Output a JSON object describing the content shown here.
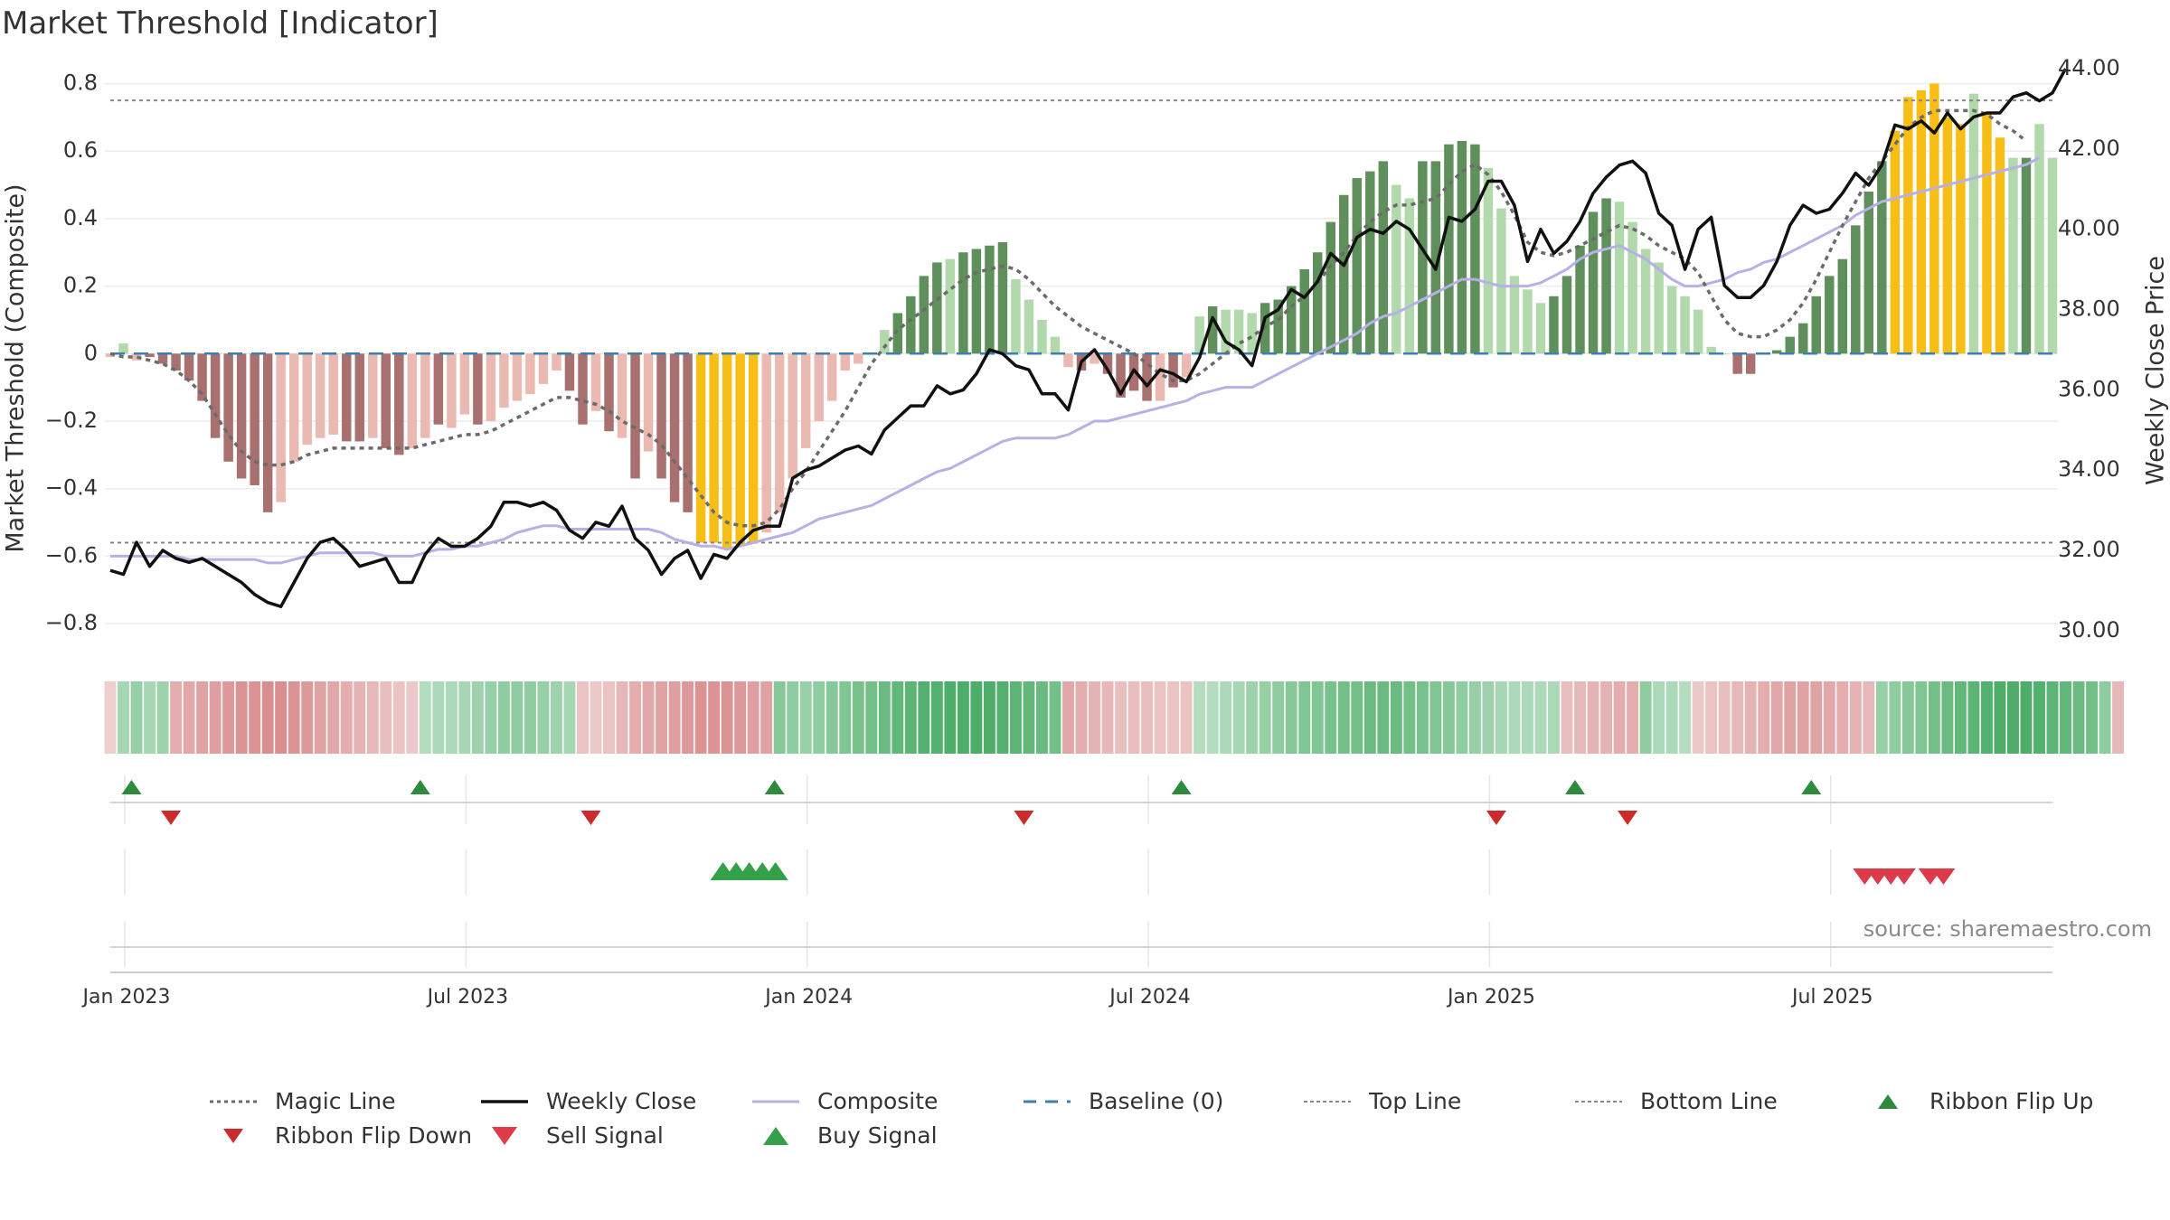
{
  "title": "Market Threshold [Indicator]",
  "source": "source: sharemaestro.com",
  "colors": {
    "magic": "#6b6b6b",
    "close": "#111111",
    "composite": "#b7b0e6",
    "baseline": "#3d7fb0",
    "threshold": "#888888",
    "flip_up": "#2e8b3e",
    "flip_down": "#cc2b2b",
    "sell": "#dd3b4a",
    "buy": "#34a04a",
    "bar_dark_red": "#a8706e",
    "bar_light_red": "#eab9b2",
    "bar_dark_green": "#5f8f5a",
    "bar_light_green": "#b1d9ac",
    "bar_yellow": "#f7be15"
  },
  "chart_data": {
    "type": "bar",
    "ylabel_left": "Market Threshold (Composite)",
    "ylabel_right": "Weekly Close Price",
    "ylim_left": [
      -0.88,
      0.82
    ],
    "ylim_right": [
      29.5,
      43.8
    ],
    "left_ticks": [
      0.8,
      0.6,
      0.4,
      0.2,
      0,
      -0.2,
      -0.4,
      -0.6,
      -0.8
    ],
    "left_tick_labels": [
      "0.8",
      "0.6",
      "0.4",
      "0.2",
      "0",
      "−0.2",
      "−0.4",
      "−0.6",
      "−0.8"
    ],
    "right_ticks": [
      44,
      42,
      40,
      38,
      36,
      34,
      32,
      30
    ],
    "right_tick_labels": [
      "44.00",
      "42.00",
      "40.00",
      "38.00",
      "36.00",
      "34.00",
      "32.00",
      "30.00"
    ],
    "x_tick_weeks": [
      0,
      26,
      52,
      78,
      104,
      130
    ],
    "x_tick_labels": [
      "Jan 2023",
      "Jul 2023",
      "Jan 2024",
      "Jul 2024",
      "Jan 2025",
      "Jul 2025"
    ],
    "top_line": 0.75,
    "bottom_line": -0.56,
    "baseline": 0,
    "composite_bars": [
      -0.01,
      0.03,
      -0.02,
      -0.01,
      -0.03,
      -0.05,
      -0.08,
      -0.14,
      -0.25,
      -0.32,
      -0.37,
      -0.39,
      -0.47,
      -0.44,
      -0.32,
      -0.27,
      -0.25,
      -0.24,
      -0.26,
      -0.26,
      -0.25,
      -0.28,
      -0.3,
      -0.28,
      -0.25,
      -0.21,
      -0.22,
      -0.18,
      -0.21,
      -0.2,
      -0.16,
      -0.14,
      -0.12,
      -0.09,
      -0.05,
      -0.11,
      -0.21,
      -0.17,
      -0.23,
      -0.25,
      -0.37,
      -0.29,
      -0.37,
      -0.44,
      -0.47,
      -0.56,
      -0.56,
      -0.58,
      -0.57,
      -0.56,
      -0.53,
      -0.47,
      -0.37,
      -0.28,
      -0.2,
      -0.14,
      -0.05,
      -0.03,
      0.0,
      0.07,
      0.12,
      0.17,
      0.23,
      0.27,
      0.28,
      0.3,
      0.31,
      0.32,
      0.33,
      0.22,
      0.16,
      0.1,
      0.05,
      -0.04,
      -0.05,
      -0.03,
      -0.06,
      -0.13,
      -0.11,
      -0.14,
      -0.14,
      -0.1,
      -0.07,
      0.11,
      0.14,
      0.13,
      0.13,
      0.12,
      0.15,
      0.16,
      0.2,
      0.25,
      0.3,
      0.39,
      0.47,
      0.52,
      0.54,
      0.57,
      0.5,
      0.46,
      0.57,
      0.57,
      0.62,
      0.63,
      0.62,
      0.55,
      0.43,
      0.23,
      0.19,
      0.15,
      0.17,
      0.23,
      0.32,
      0.42,
      0.46,
      0.45,
      0.39,
      0.31,
      0.27,
      0.2,
      0.17,
      0.13,
      0.02,
      0.0,
      -0.06,
      -0.06,
      0.0,
      0.01,
      0.05,
      0.09,
      0.17,
      0.23,
      0.28,
      0.38,
      0.48,
      0.57,
      0.66,
      0.76,
      0.78,
      0.8,
      0.7,
      0.68,
      0.77,
      0.71,
      0.64,
      0.58,
      0.58,
      0.68,
      0.58
    ],
    "bar_colors": [
      "light_red",
      "light_green",
      "light_red",
      "dark_red",
      "dark_red",
      "dark_red",
      "dark_red",
      "dark_red",
      "dark_red",
      "dark_red",
      "dark_red",
      "dark_red",
      "dark_red",
      "light_red",
      "light_red",
      "light_red",
      "light_red",
      "light_red",
      "dark_red",
      "dark_red",
      "light_red",
      "dark_red",
      "dark_red",
      "light_red",
      "light_red",
      "dark_red",
      "light_red",
      "light_red",
      "dark_red",
      "light_red",
      "light_red",
      "light_red",
      "light_red",
      "light_red",
      "light_red",
      "dark_red",
      "dark_red",
      "light_red",
      "dark_red",
      "light_red",
      "dark_red",
      "light_red",
      "dark_red",
      "dark_red",
      "dark_red",
      "yellow",
      "yellow",
      "yellow",
      "yellow",
      "yellow",
      "light_red",
      "light_red",
      "light_red",
      "light_red",
      "light_red",
      "light_red",
      "light_red",
      "light_red",
      "light_red",
      "light_green",
      "dark_green",
      "dark_green",
      "dark_green",
      "dark_green",
      "light_green",
      "dark_green",
      "dark_green",
      "dark_green",
      "dark_green",
      "light_green",
      "light_green",
      "light_green",
      "light_green",
      "light_red",
      "dark_red",
      "light_red",
      "dark_red",
      "dark_red",
      "dark_red",
      "dark_red",
      "light_red",
      "dark_red",
      "light_red",
      "light_green",
      "dark_green",
      "light_green",
      "light_green",
      "light_green",
      "dark_green",
      "dark_green",
      "dark_green",
      "dark_green",
      "dark_green",
      "dark_green",
      "dark_green",
      "dark_green",
      "dark_green",
      "dark_green",
      "light_green",
      "light_green",
      "dark_green",
      "dark_green",
      "dark_green",
      "dark_green",
      "dark_green",
      "light_green",
      "light_green",
      "light_green",
      "light_green",
      "light_green",
      "dark_green",
      "dark_green",
      "dark_green",
      "dark_green",
      "dark_green",
      "light_green",
      "light_green",
      "light_green",
      "light_green",
      "light_green",
      "light_green",
      "light_green",
      "light_green",
      "light_green",
      "dark_red",
      "dark_red",
      "light_green",
      "dark_green",
      "dark_green",
      "dark_green",
      "dark_green",
      "dark_green",
      "dark_green",
      "dark_green",
      "dark_green",
      "dark_green",
      "yellow",
      "yellow",
      "yellow",
      "yellow",
      "yellow",
      "yellow",
      "light_green",
      "yellow",
      "yellow",
      "light_green",
      "dark_green",
      "light_green",
      "light_green"
    ],
    "weekly_close": [
      31.5,
      31.4,
      32.2,
      31.6,
      32.0,
      31.8,
      31.7,
      31.8,
      31.6,
      31.4,
      31.2,
      30.9,
      30.7,
      30.6,
      31.2,
      31.8,
      32.2,
      32.3,
      32.0,
      31.6,
      31.7,
      31.8,
      31.2,
      31.2,
      31.9,
      32.3,
      32.1,
      32.1,
      32.3,
      32.6,
      33.2,
      33.2,
      33.1,
      33.2,
      33.0,
      32.5,
      32.3,
      32.7,
      32.6,
      33.1,
      32.3,
      32.0,
      31.4,
      31.8,
      32.0,
      31.3,
      31.9,
      31.8,
      32.2,
      32.5,
      32.6,
      32.6,
      33.8,
      34.0,
      34.1,
      34.3,
      34.5,
      34.6,
      34.4,
      35.0,
      35.3,
      35.6,
      35.6,
      36.1,
      35.9,
      36.0,
      36.4,
      37.0,
      36.9,
      36.6,
      36.5,
      35.9,
      35.9,
      35.5,
      36.7,
      37.0,
      36.5,
      35.9,
      36.5,
      36.1,
      36.5,
      36.4,
      36.2,
      36.8,
      37.8,
      37.2,
      37.0,
      36.6,
      37.8,
      38.0,
      38.5,
      38.3,
      38.7,
      39.4,
      39.1,
      39.8,
      40.0,
      39.9,
      40.2,
      40.0,
      39.5,
      39.0,
      40.3,
      40.2,
      40.5,
      41.2,
      41.2,
      40.6,
      39.2,
      40.0,
      39.4,
      39.7,
      40.2,
      40.9,
      41.3,
      41.6,
      41.7,
      41.4,
      40.4,
      40.1,
      39.0,
      40.0,
      40.3,
      38.6,
      38.3,
      38.3,
      38.6,
      39.2,
      40.1,
      40.6,
      40.4,
      40.5,
      40.9,
      41.4,
      41.1,
      41.6,
      42.6,
      42.5,
      42.7,
      42.4,
      42.9,
      42.5,
      42.8,
      42.9,
      42.9,
      43.3,
      43.4,
      43.2,
      43.4,
      44.0
    ],
    "composite_line": [
      -0.6,
      -0.6,
      -0.6,
      -0.6,
      -0.6,
      -0.6,
      -0.61,
      -0.61,
      -0.61,
      -0.61,
      -0.61,
      -0.61,
      -0.62,
      -0.62,
      -0.61,
      -0.6,
      -0.59,
      -0.59,
      -0.59,
      -0.59,
      -0.59,
      -0.6,
      -0.6,
      -0.6,
      -0.59,
      -0.58,
      -0.58,
      -0.57,
      -0.57,
      -0.56,
      -0.55,
      -0.53,
      -0.52,
      -0.51,
      -0.51,
      -0.52,
      -0.52,
      -0.52,
      -0.52,
      -0.52,
      -0.52,
      -0.52,
      -0.53,
      -0.55,
      -0.56,
      -0.57,
      -0.57,
      -0.58,
      -0.57,
      -0.56,
      -0.55,
      -0.54,
      -0.53,
      -0.51,
      -0.49,
      -0.48,
      -0.47,
      -0.46,
      -0.45,
      -0.43,
      -0.41,
      -0.39,
      -0.37,
      -0.35,
      -0.34,
      -0.32,
      -0.3,
      -0.28,
      -0.26,
      -0.25,
      -0.25,
      -0.25,
      -0.25,
      -0.24,
      -0.22,
      -0.2,
      -0.2,
      -0.19,
      -0.18,
      -0.17,
      -0.16,
      -0.15,
      -0.14,
      -0.12,
      -0.11,
      -0.1,
      -0.1,
      -0.1,
      -0.08,
      -0.06,
      -0.04,
      -0.02,
      0.0,
      0.02,
      0.04,
      0.06,
      0.09,
      0.11,
      0.12,
      0.14,
      0.16,
      0.18,
      0.2,
      0.22,
      0.22,
      0.21,
      0.2,
      0.2,
      0.2,
      0.21,
      0.23,
      0.25,
      0.28,
      0.3,
      0.31,
      0.32,
      0.3,
      0.28,
      0.25,
      0.22,
      0.2,
      0.2,
      0.21,
      0.22,
      0.24,
      0.25,
      0.27,
      0.28,
      0.3,
      0.32,
      0.34,
      0.36,
      0.38,
      0.41,
      0.43,
      0.45,
      0.46,
      0.47,
      0.48,
      0.49,
      0.5,
      0.51,
      0.52,
      0.53,
      0.54,
      0.55,
      0.56,
      0.58
    ],
    "magic_line": [
      0.0,
      -0.01,
      -0.01,
      -0.02,
      -0.03,
      -0.05,
      -0.08,
      -0.12,
      -0.18,
      -0.24,
      -0.29,
      -0.32,
      -0.33,
      -0.33,
      -0.32,
      -0.3,
      -0.29,
      -0.28,
      -0.28,
      -0.28,
      -0.28,
      -0.28,
      -0.28,
      -0.28,
      -0.27,
      -0.26,
      -0.25,
      -0.24,
      -0.24,
      -0.23,
      -0.21,
      -0.19,
      -0.17,
      -0.15,
      -0.13,
      -0.13,
      -0.14,
      -0.15,
      -0.17,
      -0.2,
      -0.22,
      -0.24,
      -0.27,
      -0.32,
      -0.37,
      -0.42,
      -0.47,
      -0.5,
      -0.51,
      -0.51,
      -0.5,
      -0.46,
      -0.4,
      -0.35,
      -0.29,
      -0.23,
      -0.17,
      -0.1,
      -0.03,
      0.02,
      0.07,
      0.1,
      0.13,
      0.16,
      0.19,
      0.22,
      0.24,
      0.25,
      0.26,
      0.25,
      0.22,
      0.18,
      0.14,
      0.11,
      0.08,
      0.06,
      0.04,
      0.02,
      0.0,
      -0.03,
      -0.06,
      -0.08,
      -0.08,
      -0.06,
      -0.03,
      0.0,
      0.03,
      0.05,
      0.08,
      0.1,
      0.14,
      0.17,
      0.21,
      0.26,
      0.3,
      0.35,
      0.39,
      0.42,
      0.44,
      0.44,
      0.45,
      0.46,
      0.5,
      0.54,
      0.56,
      0.53,
      0.48,
      0.41,
      0.33,
      0.3,
      0.29,
      0.3,
      0.32,
      0.34,
      0.36,
      0.38,
      0.37,
      0.35,
      0.32,
      0.3,
      0.28,
      0.24,
      0.17,
      0.1,
      0.06,
      0.05,
      0.05,
      0.07,
      0.1,
      0.15,
      0.22,
      0.3,
      0.38,
      0.45,
      0.52,
      0.57,
      0.62,
      0.67,
      0.7,
      0.72,
      0.72,
      0.72,
      0.72,
      0.71,
      0.68,
      0.66,
      0.63
    ],
    "ribbon_strength": [
      0.2,
      0.35,
      0.45,
      0.35,
      0.4,
      0.5,
      0.55,
      0.6,
      0.65,
      0.7,
      0.75,
      0.75,
      0.8,
      0.8,
      0.75,
      0.7,
      0.6,
      0.55,
      0.5,
      0.45,
      0.4,
      0.35,
      0.3,
      0.25,
      0.25,
      0.3,
      0.3,
      0.35,
      0.4,
      0.45,
      0.5,
      0.5,
      0.5,
      0.45,
      0.4,
      0.35,
      0.3,
      0.25,
      0.3,
      0.4,
      0.5,
      0.55,
      0.6,
      0.65,
      0.7,
      0.75,
      0.75,
      0.75,
      0.7,
      0.65,
      0.6,
      0.55,
      0.5,
      0.45,
      0.5,
      0.55,
      0.6,
      0.65,
      0.7,
      0.75,
      0.8,
      0.85,
      0.9,
      0.9,
      0.95,
      0.95,
      0.95,
      0.95,
      0.9,
      0.85,
      0.8,
      0.75,
      0.7,
      0.55,
      0.5,
      0.45,
      0.4,
      0.35,
      0.35,
      0.35,
      0.3,
      0.3,
      0.3,
      0.25,
      0.25,
      0.3,
      0.35,
      0.4,
      0.45,
      0.5,
      0.55,
      0.6,
      0.6,
      0.65,
      0.7,
      0.7,
      0.75,
      0.75,
      0.75,
      0.7,
      0.65,
      0.6,
      0.55,
      0.5,
      0.45,
      0.4,
      0.35,
      0.3,
      0.3,
      0.3,
      0.3,
      0.35,
      0.4,
      0.45,
      0.45,
      0.5,
      0.5,
      0.5,
      0.3,
      0.3,
      0.25,
      0.25,
      0.3,
      0.35,
      0.4,
      0.45,
      0.5,
      0.55,
      0.6,
      0.6,
      0.6,
      0.55,
      0.5,
      0.45,
      0.4,
      0.45,
      0.5,
      0.55,
      0.6,
      0.7,
      0.75,
      0.8,
      0.85,
      0.9,
      0.95,
      0.95,
      0.95,
      0.9,
      0.85,
      0.8,
      0.75,
      0.7,
      0.5,
      0.4
    ],
    "ribbon_sign": [
      -1,
      1,
      1,
      1,
      1,
      -1,
      -1,
      -1,
      -1,
      -1,
      -1,
      -1,
      -1,
      -1,
      -1,
      -1,
      -1,
      -1,
      -1,
      -1,
      -1,
      -1,
      -1,
      -1,
      1,
      1,
      1,
      1,
      1,
      1,
      1,
      1,
      1,
      1,
      1,
      1,
      -1,
      -1,
      -1,
      -1,
      -1,
      -1,
      -1,
      -1,
      -1,
      -1,
      -1,
      -1,
      -1,
      -1,
      -1,
      1,
      1,
      1,
      1,
      1,
      1,
      1,
      1,
      1,
      1,
      1,
      1,
      1,
      1,
      1,
      1,
      1,
      1,
      1,
      1,
      1,
      1,
      -1,
      -1,
      -1,
      -1,
      -1,
      -1,
      -1,
      -1,
      -1,
      -1,
      1,
      1,
      1,
      1,
      1,
      1,
      1,
      1,
      1,
      1,
      1,
      1,
      1,
      1,
      1,
      1,
      1,
      1,
      1,
      1,
      1,
      1,
      1,
      1,
      1,
      1,
      1,
      1,
      -1,
      -1,
      -1,
      -1,
      -1,
      -1,
      1,
      1,
      1,
      1,
      -1,
      -1,
      -1,
      -1,
      -1,
      -1,
      -1,
      -1,
      -1,
      -1,
      -1,
      -1,
      -1,
      -1,
      1,
      1,
      1,
      1,
      1,
      1,
      1,
      1,
      1,
      1,
      1,
      1,
      1,
      1,
      1,
      1,
      1,
      1
    ],
    "ribbon_flip_up_weeks": [
      1,
      23,
      50,
      81,
      111,
      129
    ],
    "ribbon_flip_down_weeks": [
      4,
      36,
      69,
      105,
      115
    ],
    "buy_signal_weeks": [
      46,
      47,
      48,
      49,
      50
    ],
    "sell_signal_weeks": [
      133,
      134,
      135,
      136,
      138,
      139
    ]
  },
  "legend": [
    {
      "label": "Magic Line",
      "style": "dotted",
      "color": "#6b6b6b"
    },
    {
      "label": "Weekly Close",
      "style": "solid-bold",
      "color": "#111111"
    },
    {
      "label": "Composite",
      "style": "solid-thin",
      "color": "#b7b0e6"
    },
    {
      "label": "Baseline (0)",
      "style": "dashed",
      "color": "#3d7fb0"
    },
    {
      "label": "Top Line",
      "style": "dotted-thin",
      "color": "#888888"
    },
    {
      "label": "Bottom Line",
      "style": "dotted-thin",
      "color": "#888888"
    },
    {
      "label": "Ribbon Flip Up",
      "style": "triangle-up-small",
      "color": "#2e8b3e"
    },
    {
      "label": "Ribbon Flip Down",
      "style": "triangle-down-small",
      "color": "#cc2b2b"
    },
    {
      "label": "Sell Signal",
      "style": "triangle-down-large",
      "color": "#dd3b4a"
    },
    {
      "label": "Buy Signal",
      "style": "triangle-up-large",
      "color": "#34a04a"
    }
  ]
}
